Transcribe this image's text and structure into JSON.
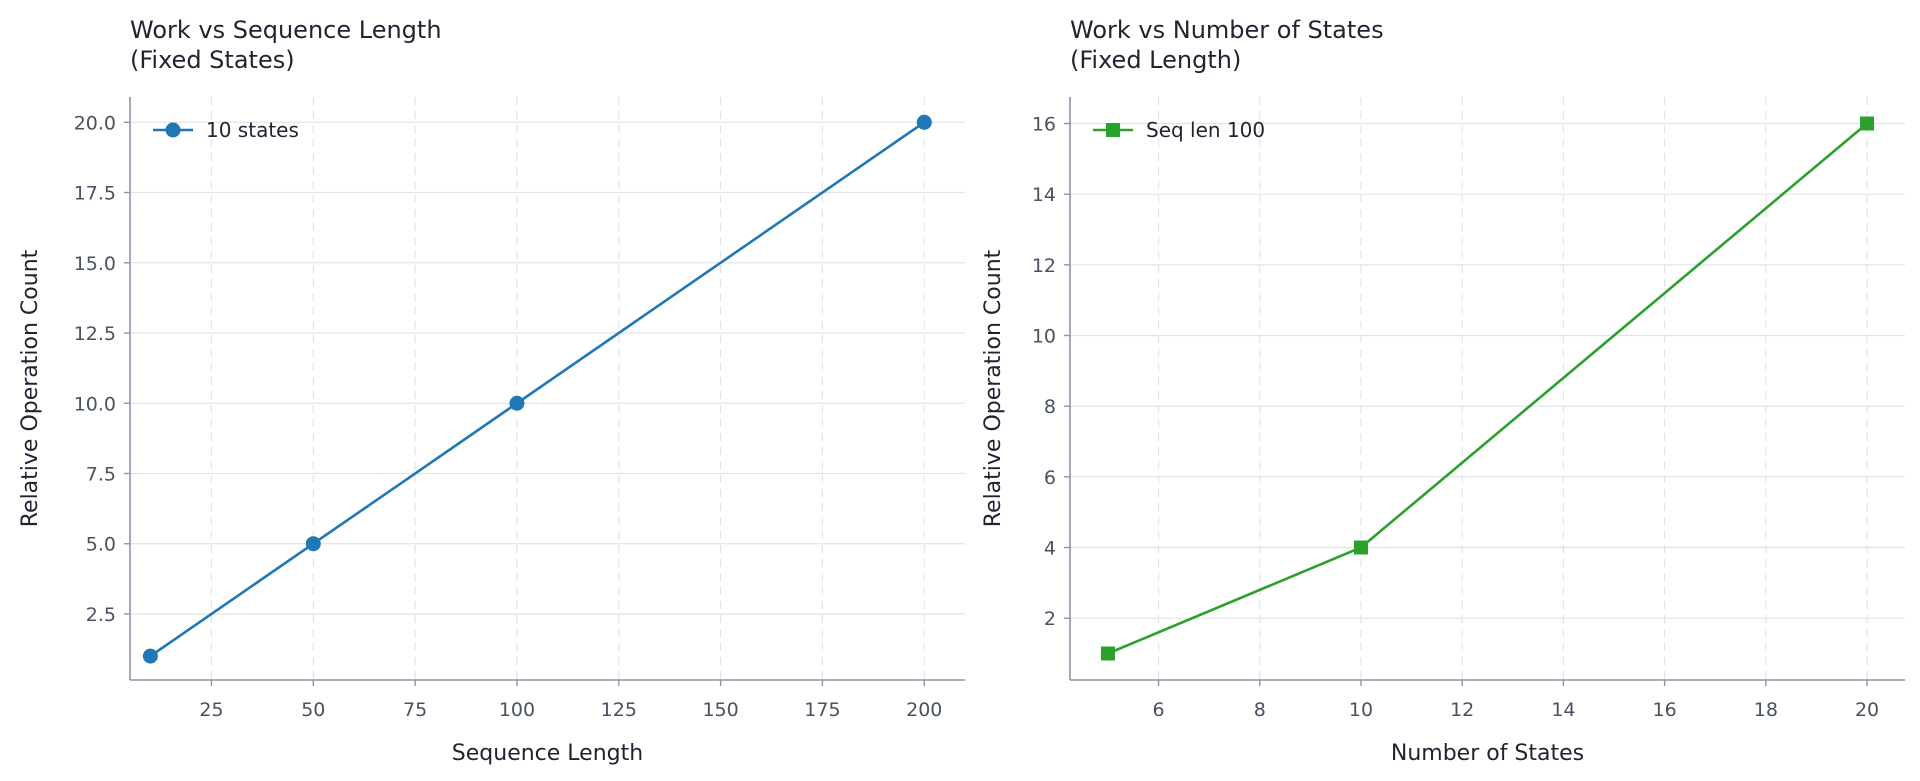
{
  "chart_data": [
    {
      "type": "line",
      "title": "Work vs Sequence Length\n(Fixed States)",
      "xlabel": "Sequence Length",
      "ylabel": "Relative Operation Count",
      "xlim": [
        5,
        210
      ],
      "ylim": [
        0.15,
        20.9
      ],
      "xticks": [
        25,
        50,
        75,
        100,
        125,
        150,
        175,
        200
      ],
      "xtick_labels": [
        "25",
        "50",
        "75",
        "100",
        "125",
        "150",
        "175",
        "200"
      ],
      "yticks": [
        2.5,
        5.0,
        7.5,
        10.0,
        12.5,
        15.0,
        17.5,
        20.0
      ],
      "ytick_labels": [
        "2.5",
        "5.0",
        "7.5",
        "10.0",
        "12.5",
        "15.0",
        "17.5",
        "20.0"
      ],
      "grid": true,
      "legend_position": "top-left",
      "series": [
        {
          "name": "10 states",
          "color": "#1f77b4",
          "marker": "circle",
          "x": [
            10,
            50,
            100,
            200
          ],
          "y": [
            1,
            5,
            10,
            20
          ]
        }
      ]
    },
    {
      "type": "line",
      "title": "Work vs Number of States\n(Fixed Length)",
      "xlabel": "Number of States",
      "ylabel": "Relative Operation Count",
      "xlim": [
        4.25,
        20.75
      ],
      "ylim": [
        0.25,
        16.75
      ],
      "xticks": [
        6,
        8,
        10,
        12,
        14,
        16,
        18,
        20
      ],
      "xtick_labels": [
        "6",
        "8",
        "10",
        "12",
        "14",
        "16",
        "18",
        "20"
      ],
      "yticks": [
        2,
        4,
        6,
        8,
        10,
        12,
        14,
        16
      ],
      "ytick_labels": [
        "2",
        "4",
        "6",
        "8",
        "10",
        "12",
        "14",
        "16"
      ],
      "grid": true,
      "legend_position": "top-left",
      "series": [
        {
          "name": "Seq len 100",
          "color": "#2ca02c",
          "marker": "square",
          "x": [
            5,
            10,
            20
          ],
          "y": [
            1,
            4,
            16
          ]
        }
      ]
    }
  ]
}
